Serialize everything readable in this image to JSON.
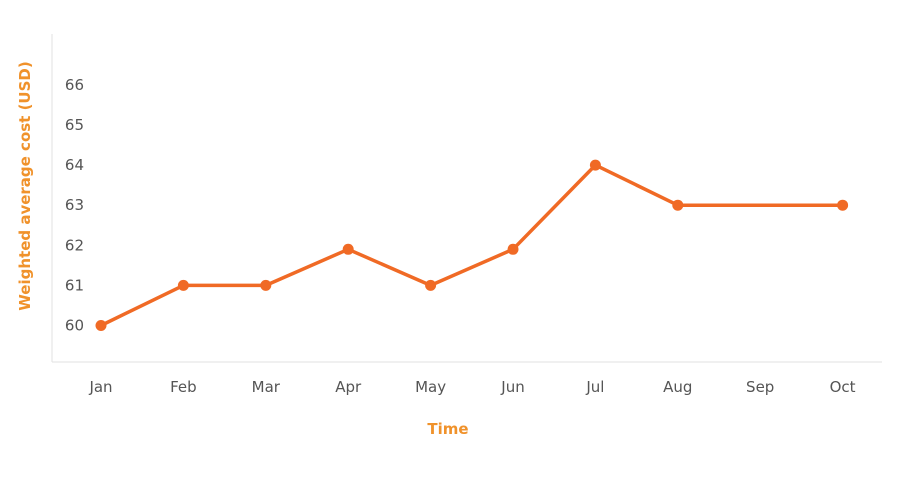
{
  "chart_data": {
    "type": "line",
    "title": "",
    "xlabel": "Time",
    "ylabel": "Weighted average cost (USD)",
    "categories": [
      "Jan",
      "Feb",
      "Mar",
      "Apr",
      "May",
      "Jun",
      "Jul",
      "Aug",
      "Sep",
      "Oct"
    ],
    "x": [
      "Jan",
      "Feb",
      "Mar",
      "Apr",
      "May",
      "Jun",
      "Jul",
      "Aug",
      "Oct"
    ],
    "y": [
      60,
      61,
      61,
      61.9,
      61,
      61.9,
      64,
      63,
      63
    ],
    "yticks": [
      60,
      61,
      62,
      63,
      64,
      65,
      66
    ],
    "ylim": [
      59.1,
      67.3
    ],
    "grid": false,
    "legend": "none",
    "colors": {
      "line": "#f06a25",
      "axis_title": "#f0922b",
      "tick_text": "#555555",
      "axis_line": "#e2e2e2"
    }
  }
}
